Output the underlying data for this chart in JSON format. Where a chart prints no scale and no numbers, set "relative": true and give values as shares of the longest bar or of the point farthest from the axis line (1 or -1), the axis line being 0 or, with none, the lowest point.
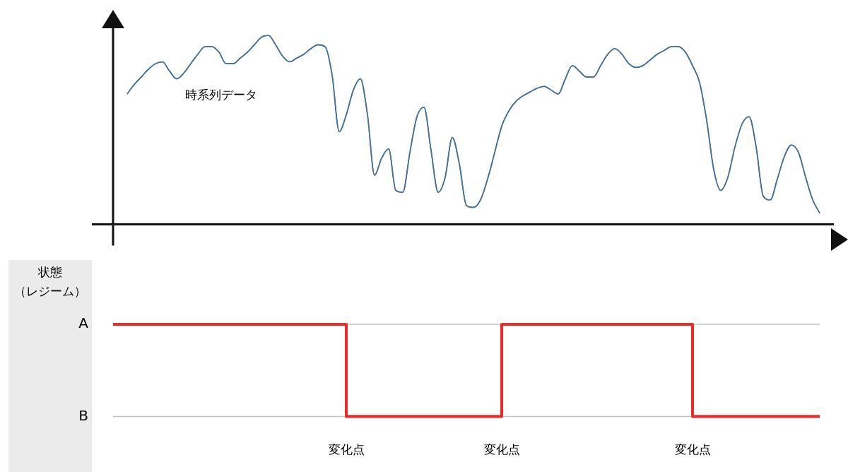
{
  "chart_data": [
    {
      "type": "line",
      "relative": true,
      "grid": false,
      "legend": false,
      "marker": "none",
      "categories": [
        null,
        null,
        null,
        null,
        null,
        null,
        null,
        null,
        null,
        null,
        null,
        null,
        null,
        null,
        null,
        null,
        null,
        null,
        null,
        null,
        null,
        null,
        null,
        null,
        null,
        null,
        null,
        null,
        null,
        null,
        null,
        null,
        null,
        null,
        null,
        null,
        null,
        null,
        null,
        null,
        null,
        null,
        null,
        null,
        null,
        null,
        null,
        null,
        null,
        null,
        null,
        null,
        null,
        null,
        null,
        null,
        null,
        null,
        null,
        null,
        null,
        null,
        null,
        null,
        null,
        null,
        null,
        null,
        null,
        null,
        null,
        null,
        null,
        null,
        null,
        null,
        null,
        null,
        null,
        null,
        null,
        null,
        null,
        null,
        null,
        null,
        null,
        null,
        null,
        null,
        null,
        null,
        null,
        null,
        null,
        null,
        null,
        null,
        null,
        null,
        null
      ],
      "series": [
        {
          "name": "時系列データ",
          "color": "#41719c",
          "values": [
            null,
            null,
            0.69,
            0.74,
            0.78,
            0.82,
            0.85,
            0.86,
            0.81,
            0.77,
            0.8,
            0.85,
            0.9,
            0.94,
            0.94,
            0.91,
            0.85,
            0.85,
            0.88,
            0.91,
            0.95,
            0.99,
            1.0,
            0.95,
            0.89,
            0.86,
            0.88,
            0.9,
            0.93,
            0.95,
            0.94,
            0.79,
            0.49,
            0.58,
            0.71,
            0.77,
            0.58,
            0.26,
            0.35,
            0.4,
            0.18,
            0.17,
            0.38,
            0.57,
            0.62,
            0.39,
            0.17,
            0.25,
            0.46,
            0.32,
            0.1,
            0.09,
            0.13,
            0.24,
            0.38,
            0.52,
            0.6,
            0.65,
            0.68,
            0.7,
            0.72,
            0.73,
            0.71,
            0.69,
            0.77,
            0.84,
            0.81,
            0.78,
            0.78,
            0.84,
            0.9,
            0.93,
            0.9,
            0.85,
            0.83,
            0.84,
            0.87,
            0.9,
            0.92,
            0.94,
            0.94,
            0.91,
            0.84,
            0.75,
            0.55,
            0.29,
            0.18,
            0.25,
            0.41,
            0.53,
            0.57,
            0.41,
            0.15,
            0.13,
            0.24,
            0.36,
            0.42,
            0.38,
            0.25,
            0.13,
            0.06
          ]
        }
      ]
    },
    {
      "type": "step",
      "ylabel": "状態（レジーム）",
      "relative": true,
      "legend": false,
      "marker": "none",
      "ref_lines": [
        {
          "axis": "y",
          "value": 1,
          "label": "A",
          "color": "#c0c0c0"
        },
        {
          "axis": "y",
          "value": 0,
          "label": "B",
          "color": "#c0c0c0"
        }
      ],
      "categories": [
        null,
        null,
        null,
        null,
        null,
        null,
        null,
        null,
        null,
        null,
        null,
        null,
        null,
        null,
        null,
        null,
        null,
        null,
        null,
        null,
        null,
        null,
        null,
        null,
        null,
        null,
        null,
        null,
        null,
        null,
        null,
        null,
        null,
        null,
        null,
        null,
        null,
        null,
        null,
        null,
        null,
        null,
        null,
        null,
        null,
        null,
        null,
        null,
        null,
        null,
        null,
        null,
        null,
        null,
        null,
        null,
        null,
        null,
        null,
        null,
        null,
        null,
        null,
        null,
        null,
        null,
        null,
        null,
        null,
        null,
        null,
        null,
        null,
        null,
        null,
        null,
        null,
        null,
        null,
        null,
        null,
        null,
        null,
        null,
        null,
        null,
        null,
        null,
        null,
        null,
        null,
        null,
        null,
        null,
        null,
        null,
        null,
        null,
        null,
        null,
        null
      ],
      "series": [
        {
          "color": "#ee2a24",
          "values": [
            1,
            1,
            1,
            1,
            1,
            1,
            1,
            1,
            1,
            1,
            1,
            1,
            1,
            1,
            1,
            1,
            1,
            1,
            1,
            1,
            1,
            1,
            1,
            1,
            1,
            1,
            1,
            1,
            1,
            1,
            1,
            1,
            1,
            0,
            0,
            0,
            0,
            0,
            0,
            0,
            0,
            0,
            0,
            0,
            0,
            0,
            0,
            0,
            0,
            0,
            0,
            0,
            0,
            0,
            0,
            1,
            1,
            1,
            1,
            1,
            1,
            1,
            1,
            1,
            1,
            1,
            1,
            1,
            1,
            1,
            1,
            1,
            1,
            1,
            1,
            1,
            1,
            1,
            1,
            1,
            1,
            1,
            0,
            0,
            0,
            0,
            0,
            0,
            0,
            0,
            0,
            0,
            0,
            0,
            0,
            0,
            0,
            0,
            0,
            0,
            0
          ]
        }
      ],
      "annotations": [
        "変化点",
        "変化点",
        "変化点"
      ]
    }
  ]
}
